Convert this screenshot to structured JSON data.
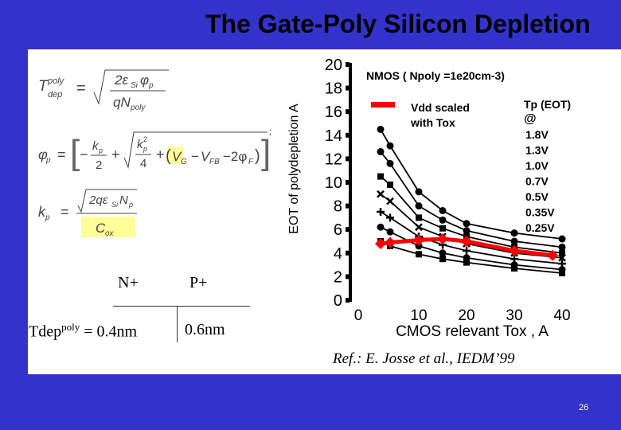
{
  "slide": {
    "title": "The Gate-Poly Silicon Depletion",
    "page_number": "26",
    "reference": "Ref.: E. Josse et al., IEDM’99"
  },
  "table": {
    "col1": "N+",
    "col2": "P+",
    "row_label": "Tdep",
    "row_label_sup": "poly",
    "equals": " = ",
    "v1": "0.4nm",
    "v2": "0.6nm"
  },
  "colors": {
    "bar": "#3333cc",
    "highlight_curve": "#ff0000",
    "formula_bg": "#ffff99"
  },
  "chart_data": {
    "type": "line",
    "title": "NMOS ( Npoly =1e20cm-3)",
    "xlabel": "CMOS relevant  Tox , A",
    "ylabel": "EOT of  polydepletion A",
    "xlim": [
      0,
      40
    ],
    "ylim": [
      0,
      20
    ],
    "xticks": [
      "0",
      "10",
      "20",
      "30",
      "40"
    ],
    "yticks": [
      "0",
      "2",
      "4",
      "6",
      "8",
      "10",
      "12",
      "14",
      "16",
      "18",
      "20"
    ],
    "legend_header_1": "Tp  (EOT)",
    "legend_header_2": "@",
    "legend_entries": [
      "1.8V",
      "1.3V",
      "1.0V",
      "0.7V",
      "0.5V",
      "0.35V",
      "0.25V"
    ],
    "highlight_label": "Vdd  scaled\nwith Tox",
    "series": [
      {
        "name": "1.8V",
        "x": [
          2,
          4,
          10,
          15,
          20,
          30,
          40
        ],
        "y": [
          14.5,
          13.1,
          9.2,
          7.6,
          6.5,
          5.7,
          5.2
        ]
      },
      {
        "name": "1.3V",
        "x": [
          2,
          4,
          10,
          15,
          20,
          30,
          40
        ],
        "y": [
          12.6,
          11.6,
          8.0,
          6.8,
          5.9,
          5.0,
          4.5
        ]
      },
      {
        "name": "1.0V",
        "x": [
          2,
          4,
          10,
          15,
          20,
          30,
          40
        ],
        "y": [
          10.5,
          9.8,
          7.0,
          6.1,
          5.4,
          4.5,
          4.0
        ]
      },
      {
        "name": "0.7V",
        "x": [
          2,
          4,
          10,
          15,
          20,
          30,
          40
        ],
        "y": [
          9.0,
          8.4,
          6.2,
          5.4,
          4.8,
          4.0,
          3.6
        ]
      },
      {
        "name": "0.5V",
        "x": [
          2,
          4,
          10,
          15,
          20,
          30,
          40
        ],
        "y": [
          7.5,
          7.0,
          5.4,
          4.7,
          4.2,
          3.5,
          3.1
        ]
      },
      {
        "name": "0.35V",
        "x": [
          2,
          4,
          10,
          15,
          20,
          30,
          40
        ],
        "y": [
          6.2,
          5.8,
          4.6,
          4.0,
          3.6,
          3.0,
          2.6
        ]
      },
      {
        "name": "0.25V",
        "x": [
          2,
          4,
          10,
          15,
          20,
          30,
          40
        ],
        "y": [
          5.0,
          4.6,
          3.9,
          3.5,
          3.2,
          2.7,
          2.3
        ]
      }
    ],
    "highlight_series": {
      "x": [
        2,
        4,
        10,
        15,
        20,
        30,
        38
      ],
      "y": [
        4.8,
        4.9,
        5.1,
        5.2,
        5.0,
        4.2,
        3.8
      ]
    }
  }
}
